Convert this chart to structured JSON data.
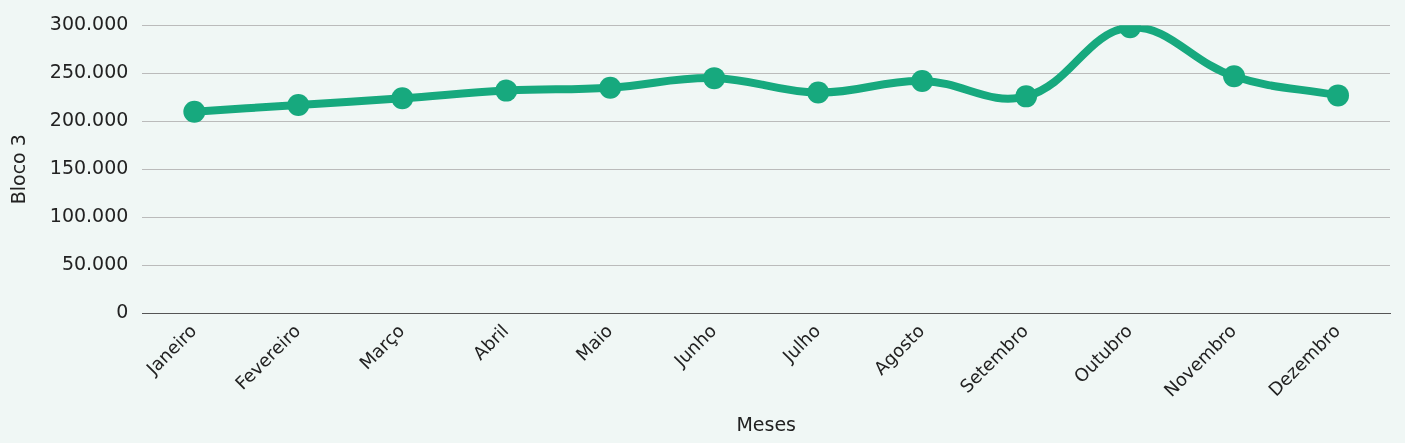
{
  "chart_data": {
    "type": "line",
    "xlabel": "Meses",
    "ylabel": "Bloco 3",
    "categories": [
      "Janeiro",
      "Fevereiro",
      "Março",
      "Abril",
      "Maio",
      "Junho",
      "Julho",
      "Agosto",
      "Setembro",
      "Outubro",
      "Novembro",
      "Dezembro"
    ],
    "series": [
      {
        "color": "#17a97e",
        "values": [
          210000,
          217000,
          224000,
          232000,
          235000,
          245000,
          230000,
          242000,
          226000,
          298000,
          247000,
          227000
        ]
      }
    ],
    "ylim": [
      0,
      300000
    ],
    "yticks": [
      {
        "value": 0,
        "label": "0"
      },
      {
        "value": 50000,
        "label": "50.000"
      },
      {
        "value": 100000,
        "label": "100.000"
      },
      {
        "value": 150000,
        "label": "150.000"
      },
      {
        "value": 200000,
        "label": "200.000"
      },
      {
        "value": 250000,
        "label": "250.000"
      },
      {
        "value": 300000,
        "label": "300.000"
      }
    ],
    "grid": "y",
    "legend": false,
    "marker": "circle",
    "line_style": "solid"
  }
}
